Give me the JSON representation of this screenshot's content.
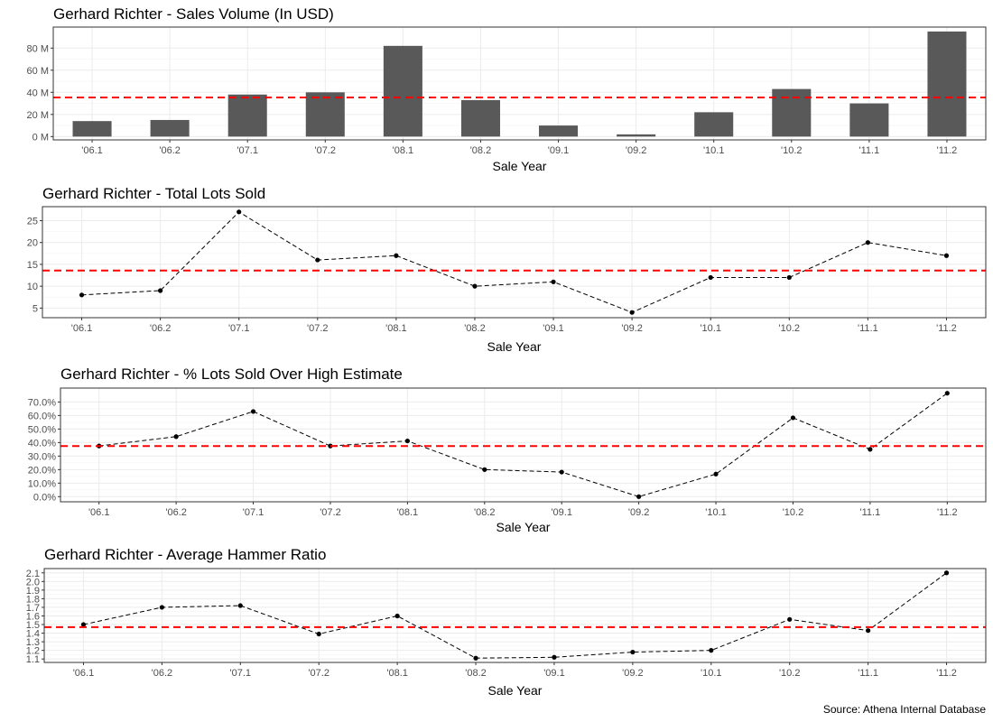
{
  "source_note": "Source: Athena Internal Database",
  "style": {
    "bar_color": "#595959",
    "reference_line_color": "#ff0000",
    "line_color": "#000000",
    "grid_color": "#ebebeb",
    "panel_border_color": "#333333"
  },
  "chart_data": [
    {
      "type": "bar",
      "title": "Gerhard Richter - Sales Volume (In USD)",
      "xlabel": "Sale Year",
      "ylabel": "",
      "categories": [
        "'06.1",
        "'06.2",
        "'07.1",
        "'07.2",
        "'08.1",
        "'08.2",
        "'09.1",
        "'09.2",
        "'10.1",
        "'10.2",
        "'11.1",
        "'11.2"
      ],
      "values": [
        14,
        15,
        38,
        40,
        82,
        33,
        10,
        2,
        22,
        43,
        30,
        95
      ],
      "unit": "M",
      "ylim": [
        -3,
        99
      ],
      "yticks": [
        0,
        20,
        40,
        60,
        80
      ],
      "ytick_labels": [
        "0 M",
        "20 M",
        "40 M",
        "60 M",
        "80 M"
      ],
      "reference_line": 35.4,
      "grid": true
    },
    {
      "type": "line",
      "title": "Gerhard Richter - Total Lots Sold",
      "xlabel": "Sale Year",
      "ylabel": "",
      "categories": [
        "'06.1",
        "'06.2",
        "'07.1",
        "'07.2",
        "'08.1",
        "'08.2",
        "'09.1",
        "'09.2",
        "'10.1",
        "'10.2",
        "'11.1",
        "'11.2"
      ],
      "values": [
        8,
        9,
        27,
        16,
        17,
        10,
        11,
        4,
        12,
        12,
        20,
        17
      ],
      "ylim": [
        2.8,
        28.2
      ],
      "yticks": [
        5,
        10,
        15,
        20,
        25
      ],
      "ytick_labels": [
        "5",
        "10",
        "15",
        "20",
        "25"
      ],
      "reference_line": 13.6,
      "grid": true
    },
    {
      "type": "line",
      "title": "Gerhard Richter - % Lots Sold Over High Estimate",
      "xlabel": "Sale Year",
      "ylabel": "",
      "categories": [
        "'06.1",
        "'06.2",
        "'07.1",
        "'07.2",
        "'08.1",
        "'08.2",
        "'09.1",
        "'09.2",
        "'10.1",
        "'10.2",
        "'11.1",
        "'11.2"
      ],
      "values": [
        37.5,
        44.4,
        63.0,
        37.5,
        41.2,
        20.0,
        18.2,
        0.0,
        16.7,
        58.3,
        35.0,
        76.5
      ],
      "ylim": [
        -3.8,
        80.3
      ],
      "yticks": [
        0,
        10,
        20,
        30,
        40,
        50,
        60,
        70
      ],
      "ytick_labels": [
        "0.0%",
        "10.0%",
        "20.0%",
        "30.0%",
        "40.0%",
        "50.0%",
        "60.0%",
        "70.0%"
      ],
      "reference_line": 37.4,
      "grid": true
    },
    {
      "type": "line",
      "title": "Gerhard Richter - Average Hammer Ratio",
      "xlabel": "Sale Year",
      "ylabel": "",
      "categories": [
        "'06.1",
        "'06.2",
        "'07.1",
        "'07.2",
        "'08.1",
        "'08.2",
        "'09.1",
        "'09.2",
        "'10.1",
        "'10.2",
        "'11.1",
        "'11.2"
      ],
      "values": [
        1.5,
        1.7,
        1.72,
        1.39,
        1.6,
        1.11,
        1.12,
        1.18,
        1.2,
        1.56,
        1.43,
        2.1
      ],
      "ylim": [
        1.06,
        2.15
      ],
      "yticks": [
        1.1,
        1.2,
        1.3,
        1.4,
        1.5,
        1.6,
        1.7,
        1.8,
        1.9,
        2.0,
        2.1
      ],
      "ytick_labels": [
        "1.1",
        "1.2",
        "1.3",
        "1.4",
        "1.5",
        "1.6",
        "1.7",
        "1.8",
        "1.9",
        "2.0",
        "2.1"
      ],
      "reference_line": 1.47,
      "grid": true
    }
  ]
}
